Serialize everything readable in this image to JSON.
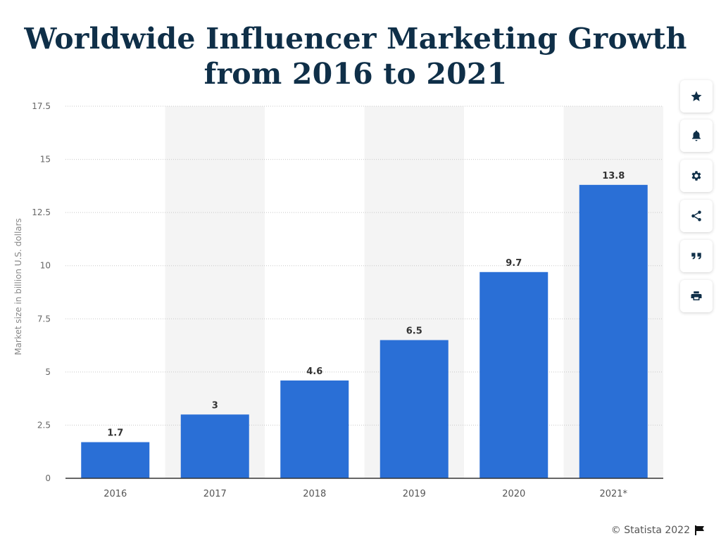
{
  "title_line1": "Worldwide Influencer Marketing Growth",
  "title_line2": "from 2016 to 2021",
  "footer": {
    "credit": "© Statista 2022"
  },
  "toolbar": [
    "star-icon",
    "bell-icon",
    "gear-icon",
    "share-icon",
    "quote-icon",
    "print-icon"
  ],
  "colors": {
    "bar": "#2a6fd6",
    "title": "#0f2f48",
    "band": "#f4f4f4"
  },
  "chart_data": {
    "type": "bar",
    "title": "Worldwide Influencer Marketing Growth from 2016 to 2021",
    "ylabel": "Market size in billion U.S. dollars",
    "xlabel": "",
    "categories": [
      "2016",
      "2017",
      "2018",
      "2019",
      "2020",
      "2021*"
    ],
    "values": [
      1.7,
      3,
      4.6,
      6.5,
      9.7,
      13.8
    ],
    "value_labels": [
      "1.7",
      "3",
      "4.6",
      "6.5",
      "9.7",
      "13.8"
    ],
    "ylim": [
      0,
      17.5
    ],
    "yticks": [
      0,
      2.5,
      5,
      7.5,
      10,
      12.5,
      15,
      17.5
    ],
    "ytick_labels": [
      "0",
      "2.5",
      "5",
      "7.5",
      "10",
      "12.5",
      "15",
      "17.5"
    ],
    "grid": true,
    "legend": "none"
  }
}
